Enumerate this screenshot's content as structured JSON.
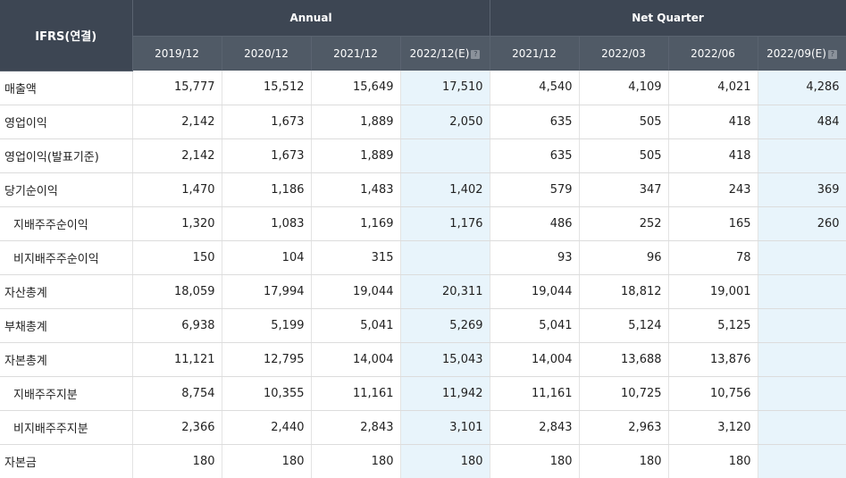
{
  "header": {
    "corner_label": "IFRS(연결)",
    "group_annual": "Annual",
    "group_quarter": "Net Quarter",
    "periods": [
      "2019/12",
      "2020/12",
      "2021/12",
      "2022/12(E)",
      "2021/12",
      "2022/03",
      "2022/06",
      "2022/09(E)"
    ],
    "estimate_icon": "?"
  },
  "rows": [
    {
      "label": "매출액",
      "values": [
        "15,777",
        "15,512",
        "15,649",
        "17,510",
        "4,540",
        "4,109",
        "4,021",
        "4,286"
      ]
    },
    {
      "label": "영업이익",
      "values": [
        "2,142",
        "1,673",
        "1,889",
        "2,050",
        "635",
        "505",
        "418",
        "484"
      ]
    },
    {
      "label": "영업이익(발표기준)",
      "values": [
        "2,142",
        "1,673",
        "1,889",
        "",
        "635",
        "505",
        "418",
        ""
      ]
    },
    {
      "label": "당기순이익",
      "values": [
        "1,470",
        "1,186",
        "1,483",
        "1,402",
        "579",
        "347",
        "243",
        "369"
      ]
    },
    {
      "label": "지배주주순이익",
      "values": [
        "1,320",
        "1,083",
        "1,169",
        "1,176",
        "486",
        "252",
        "165",
        "260"
      ]
    },
    {
      "label": "비지배주주순이익",
      "values": [
        "150",
        "104",
        "315",
        "",
        "93",
        "96",
        "78",
        ""
      ]
    },
    {
      "label": "자산총계",
      "values": [
        "18,059",
        "17,994",
        "19,044",
        "20,311",
        "19,044",
        "18,812",
        "19,001",
        ""
      ]
    },
    {
      "label": "부채총계",
      "values": [
        "6,938",
        "5,199",
        "5,041",
        "5,269",
        "5,041",
        "5,124",
        "5,125",
        ""
      ]
    },
    {
      "label": "자본총계",
      "values": [
        "11,121",
        "12,795",
        "14,004",
        "15,043",
        "14,004",
        "13,688",
        "13,876",
        ""
      ]
    },
    {
      "label": "지배주주지분",
      "values": [
        "8,754",
        "10,355",
        "11,161",
        "11,942",
        "11,161",
        "10,725",
        "10,756",
        ""
      ]
    },
    {
      "label": "비지배주주지분",
      "values": [
        "2,366",
        "2,440",
        "2,843",
        "3,101",
        "2,843",
        "2,963",
        "3,120",
        ""
      ]
    },
    {
      "label": "자본금",
      "values": [
        "180",
        "180",
        "180",
        "180",
        "180",
        "180",
        "180",
        ""
      ]
    }
  ]
}
